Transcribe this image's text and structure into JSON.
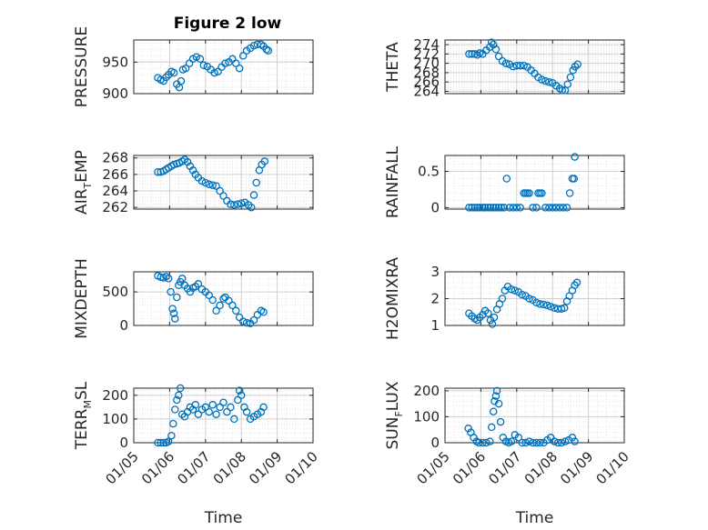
{
  "figure": {
    "title": "Figure 2 low"
  },
  "style": {
    "marker_color": "#0072BD",
    "grid_color": "#dfdfdf",
    "axis_color": "#262626"
  },
  "chart_data": [
    {
      "type": "scatter",
      "ylabel": "PRESSURE",
      "yticks": [
        900,
        950
      ],
      "ylim": [
        900,
        985
      ],
      "xlim": [
        5,
        10
      ],
      "grid": true,
      "minor_grid": true,
      "points": [
        [
          5.67,
          925
        ],
        [
          5.75,
          922
        ],
        [
          5.83,
          920
        ],
        [
          5.9,
          926
        ],
        [
          5.97,
          930
        ],
        [
          6.05,
          935
        ],
        [
          6.12,
          933
        ],
        [
          6.2,
          915
        ],
        [
          6.27,
          910
        ],
        [
          6.32,
          920
        ],
        [
          6.37,
          938
        ],
        [
          6.45,
          940
        ],
        [
          6.55,
          948
        ],
        [
          6.65,
          955
        ],
        [
          6.75,
          958
        ],
        [
          6.85,
          955
        ],
        [
          6.95,
          945
        ],
        [
          7.05,
          943
        ],
        [
          7.15,
          938
        ],
        [
          7.25,
          933
        ],
        [
          7.35,
          935
        ],
        [
          7.45,
          942
        ],
        [
          7.55,
          948
        ],
        [
          7.65,
          950
        ],
        [
          7.75,
          955
        ],
        [
          7.85,
          948
        ],
        [
          7.95,
          940
        ],
        [
          8.05,
          960
        ],
        [
          8.15,
          968
        ],
        [
          8.25,
          972
        ],
        [
          8.35,
          976
        ],
        [
          8.45,
          978
        ],
        [
          8.55,
          978
        ],
        [
          8.62,
          975
        ],
        [
          8.7,
          970
        ],
        [
          8.75,
          968
        ]
      ]
    },
    {
      "type": "scatter",
      "ylabel": "THETA",
      "yticks": [
        264,
        266,
        268,
        270,
        272,
        274
      ],
      "ylim": [
        263.5,
        275
      ],
      "xlim": [
        5,
        10
      ],
      "grid": true,
      "minor_grid": true,
      "points": [
        [
          5.67,
          272
        ],
        [
          5.75,
          272
        ],
        [
          5.83,
          272
        ],
        [
          5.9,
          271.8
        ],
        [
          5.97,
          272.2
        ],
        [
          6.05,
          272
        ],
        [
          6.15,
          272.8
        ],
        [
          6.25,
          273.5
        ],
        [
          6.3,
          274.5
        ],
        [
          6.35,
          274
        ],
        [
          6.42,
          273
        ],
        [
          6.5,
          271.5
        ],
        [
          6.6,
          270.5
        ],
        [
          6.7,
          270
        ],
        [
          6.8,
          269.8
        ],
        [
          6.9,
          269.3
        ],
        [
          7.0,
          269.5
        ],
        [
          7.1,
          269.5
        ],
        [
          7.2,
          269.5
        ],
        [
          7.3,
          269.2
        ],
        [
          7.4,
          268.5
        ],
        [
          7.5,
          267.8
        ],
        [
          7.6,
          267
        ],
        [
          7.7,
          266.5
        ],
        [
          7.8,
          266.2
        ],
        [
          7.9,
          266
        ],
        [
          8.0,
          265.8
        ],
        [
          8.1,
          265.2
        ],
        [
          8.2,
          264.6
        ],
        [
          8.27,
          264.2
        ],
        [
          8.35,
          264.2
        ],
        [
          8.42,
          265.5
        ],
        [
          8.5,
          267
        ],
        [
          8.57,
          268.5
        ],
        [
          8.63,
          269.3
        ],
        [
          8.7,
          269.8
        ]
      ]
    },
    {
      "type": "scatter",
      "ylabel": "AIR_TEMP",
      "yticks": [
        262,
        264,
        266,
        268
      ],
      "ylim": [
        261.8,
        268.3
      ],
      "xlim": [
        5,
        10
      ],
      "grid": true,
      "minor_grid": true,
      "points": [
        [
          5.67,
          266.3
        ],
        [
          5.75,
          266.3
        ],
        [
          5.83,
          266.4
        ],
        [
          5.9,
          266.6
        ],
        [
          5.97,
          266.8
        ],
        [
          6.05,
          267
        ],
        [
          6.12,
          267.2
        ],
        [
          6.2,
          267.3
        ],
        [
          6.27,
          267.4
        ],
        [
          6.35,
          267.6
        ],
        [
          6.42,
          267.8
        ],
        [
          6.5,
          267.5
        ],
        [
          6.57,
          267
        ],
        [
          6.65,
          266.5
        ],
        [
          6.72,
          266
        ],
        [
          6.8,
          265.6
        ],
        [
          6.9,
          265.2
        ],
        [
          7.0,
          265
        ],
        [
          7.1,
          264.8
        ],
        [
          7.2,
          264.7
        ],
        [
          7.3,
          264.6
        ],
        [
          7.4,
          264
        ],
        [
          7.5,
          263.4
        ],
        [
          7.6,
          262.8
        ],
        [
          7.7,
          262.4
        ],
        [
          7.8,
          262.3
        ],
        [
          7.9,
          262.4
        ],
        [
          8.0,
          262.5
        ],
        [
          8.1,
          262.6
        ],
        [
          8.2,
          262.3
        ],
        [
          8.28,
          262
        ],
        [
          8.35,
          263.5
        ],
        [
          8.42,
          265
        ],
        [
          8.5,
          266.5
        ],
        [
          8.57,
          267.2
        ],
        [
          8.65,
          267.6
        ]
      ]
    },
    {
      "type": "scatter",
      "ylabel": "RAINFALL",
      "yticks": [
        0,
        0.5
      ],
      "ylim": [
        -0.02,
        0.72
      ],
      "xlim": [
        5,
        10
      ],
      "grid": true,
      "minor_grid": true,
      "points": [
        [
          5.67,
          0
        ],
        [
          5.75,
          0
        ],
        [
          5.83,
          0
        ],
        [
          5.9,
          0
        ],
        [
          5.97,
          0
        ],
        [
          6.05,
          0
        ],
        [
          6.12,
          0
        ],
        [
          6.2,
          0
        ],
        [
          6.27,
          0
        ],
        [
          6.35,
          0
        ],
        [
          6.42,
          0
        ],
        [
          6.5,
          0
        ],
        [
          6.57,
          0
        ],
        [
          6.65,
          0
        ],
        [
          6.72,
          0.4
        ],
        [
          6.8,
          0
        ],
        [
          6.9,
          0
        ],
        [
          7.0,
          0
        ],
        [
          7.1,
          0
        ],
        [
          7.2,
          0.2
        ],
        [
          7.25,
          0.2
        ],
        [
          7.3,
          0.2
        ],
        [
          7.35,
          0.2
        ],
        [
          7.45,
          0
        ],
        [
          7.55,
          0
        ],
        [
          7.6,
          0.2
        ],
        [
          7.65,
          0.2
        ],
        [
          7.7,
          0.2
        ],
        [
          7.8,
          0
        ],
        [
          7.9,
          0
        ],
        [
          8.0,
          0
        ],
        [
          8.1,
          0
        ],
        [
          8.2,
          0
        ],
        [
          8.3,
          0
        ],
        [
          8.4,
          0
        ],
        [
          8.48,
          0.2
        ],
        [
          8.55,
          0.4
        ],
        [
          8.6,
          0.4
        ],
        [
          8.62,
          0.7
        ]
      ]
    },
    {
      "type": "scatter",
      "ylabel": "MIXDEPTH",
      "yticks": [
        0,
        500
      ],
      "ylim": [
        0,
        800
      ],
      "xlim": [
        5,
        10
      ],
      "grid": true,
      "minor_grid": true,
      "points": [
        [
          5.67,
          740
        ],
        [
          5.75,
          720
        ],
        [
          5.83,
          710
        ],
        [
          5.9,
          730
        ],
        [
          5.97,
          700
        ],
        [
          6.03,
          500
        ],
        [
          6.08,
          250
        ],
        [
          6.12,
          180
        ],
        [
          6.15,
          100
        ],
        [
          6.2,
          420
        ],
        [
          6.25,
          600
        ],
        [
          6.3,
          650
        ],
        [
          6.35,
          700
        ],
        [
          6.42,
          600
        ],
        [
          6.5,
          550
        ],
        [
          6.57,
          500
        ],
        [
          6.65,
          560
        ],
        [
          6.72,
          580
        ],
        [
          6.8,
          620
        ],
        [
          6.9,
          540
        ],
        [
          7.0,
          500
        ],
        [
          7.1,
          450
        ],
        [
          7.2,
          380
        ],
        [
          7.3,
          220
        ],
        [
          7.4,
          300
        ],
        [
          7.5,
          400
        ],
        [
          7.55,
          420
        ],
        [
          7.65,
          370
        ],
        [
          7.75,
          300
        ],
        [
          7.85,
          220
        ],
        [
          7.95,
          120
        ],
        [
          8.05,
          60
        ],
        [
          8.15,
          40
        ],
        [
          8.25,
          30
        ],
        [
          8.35,
          80
        ],
        [
          8.45,
          160
        ],
        [
          8.55,
          220
        ],
        [
          8.62,
          200
        ]
      ]
    },
    {
      "type": "scatter",
      "ylabel": "H2OMIXRA",
      "yticks": [
        1,
        2,
        3
      ],
      "ylim": [
        1,
        3
      ],
      "xlim": [
        5,
        10
      ],
      "grid": true,
      "minor_grid": true,
      "points": [
        [
          5.67,
          1.45
        ],
        [
          5.75,
          1.35
        ],
        [
          5.83,
          1.25
        ],
        [
          5.9,
          1.2
        ],
        [
          5.97,
          1.3
        ],
        [
          6.05,
          1.4
        ],
        [
          6.12,
          1.55
        ],
        [
          6.2,
          1.45
        ],
        [
          6.27,
          1.2
        ],
        [
          6.32,
          1.05
        ],
        [
          6.37,
          1.3
        ],
        [
          6.45,
          1.6
        ],
        [
          6.52,
          1.8
        ],
        [
          6.6,
          2.0
        ],
        [
          6.67,
          2.3
        ],
        [
          6.75,
          2.45
        ],
        [
          6.85,
          2.35
        ],
        [
          6.95,
          2.3
        ],
        [
          7.05,
          2.25
        ],
        [
          7.15,
          2.15
        ],
        [
          7.25,
          2.1
        ],
        [
          7.35,
          2.0
        ],
        [
          7.45,
          1.95
        ],
        [
          7.55,
          1.85
        ],
        [
          7.65,
          1.8
        ],
        [
          7.75,
          1.78
        ],
        [
          7.85,
          1.75
        ],
        [
          7.95,
          1.7
        ],
        [
          8.05,
          1.65
        ],
        [
          8.15,
          1.62
        ],
        [
          8.25,
          1.62
        ],
        [
          8.33,
          1.65
        ],
        [
          8.4,
          1.9
        ],
        [
          8.47,
          2.1
        ],
        [
          8.55,
          2.3
        ],
        [
          8.62,
          2.5
        ],
        [
          8.68,
          2.6
        ]
      ]
    },
    {
      "type": "scatter",
      "ylabel": "TERR_MSL",
      "yticks": [
        0,
        100,
        200
      ],
      "ylim": [
        0,
        230
      ],
      "xlim": [
        5,
        10
      ],
      "xticks": [
        "01/05",
        "01/06",
        "01/07",
        "01/08",
        "01/09",
        "01/10"
      ],
      "xlabel": "Time",
      "grid": true,
      "minor_grid": true,
      "points": [
        [
          5.67,
          0
        ],
        [
          5.75,
          0
        ],
        [
          5.83,
          0
        ],
        [
          5.9,
          0
        ],
        [
          5.97,
          5
        ],
        [
          6.05,
          30
        ],
        [
          6.1,
          80
        ],
        [
          6.15,
          140
        ],
        [
          6.2,
          180
        ],
        [
          6.25,
          200
        ],
        [
          6.3,
          230
        ],
        [
          6.35,
          120
        ],
        [
          6.42,
          110
        ],
        [
          6.5,
          130
        ],
        [
          6.57,
          150
        ],
        [
          6.65,
          140
        ],
        [
          6.72,
          160
        ],
        [
          6.8,
          120
        ],
        [
          6.9,
          140
        ],
        [
          7.0,
          150
        ],
        [
          7.1,
          130
        ],
        [
          7.2,
          160
        ],
        [
          7.3,
          120
        ],
        [
          7.4,
          150
        ],
        [
          7.5,
          170
        ],
        [
          7.6,
          130
        ],
        [
          7.7,
          150
        ],
        [
          7.8,
          100
        ],
        [
          7.9,
          180
        ],
        [
          7.95,
          220
        ],
        [
          8.0,
          200
        ],
        [
          8.08,
          150
        ],
        [
          8.15,
          130
        ],
        [
          8.25,
          100
        ],
        [
          8.35,
          110
        ],
        [
          8.45,
          120
        ],
        [
          8.55,
          130
        ],
        [
          8.62,
          150
        ]
      ]
    },
    {
      "type": "scatter",
      "ylabel": "SUN_FLUX",
      "yticks": [
        0,
        100,
        200
      ],
      "ylim": [
        0,
        210
      ],
      "xlim": [
        5,
        10
      ],
      "xticks": [
        "01/05",
        "01/06",
        "01/07",
        "01/08",
        "01/09",
        "01/10"
      ],
      "xlabel": "Time",
      "grid": true,
      "minor_grid": true,
      "points": [
        [
          5.65,
          55
        ],
        [
          5.72,
          40
        ],
        [
          5.8,
          20
        ],
        [
          5.88,
          5
        ],
        [
          5.95,
          0
        ],
        [
          6.05,
          0
        ],
        [
          6.15,
          0
        ],
        [
          6.25,
          5
        ],
        [
          6.3,
          60
        ],
        [
          6.35,
          120
        ],
        [
          6.38,
          160
        ],
        [
          6.42,
          180
        ],
        [
          6.45,
          200
        ],
        [
          6.5,
          150
        ],
        [
          6.55,
          80
        ],
        [
          6.62,
          20
        ],
        [
          6.7,
          5
        ],
        [
          6.78,
          0
        ],
        [
          6.85,
          5
        ],
        [
          6.95,
          30
        ],
        [
          7.05,
          20
        ],
        [
          7.15,
          0
        ],
        [
          7.25,
          0
        ],
        [
          7.35,
          5
        ],
        [
          7.45,
          0
        ],
        [
          7.55,
          0
        ],
        [
          7.65,
          0
        ],
        [
          7.75,
          0
        ],
        [
          7.85,
          10
        ],
        [
          7.95,
          20
        ],
        [
          8.05,
          5
        ],
        [
          8.15,
          0
        ],
        [
          8.25,
          0
        ],
        [
          8.35,
          5
        ],
        [
          8.45,
          10
        ],
        [
          8.55,
          20
        ],
        [
          8.62,
          5
        ]
      ]
    }
  ]
}
